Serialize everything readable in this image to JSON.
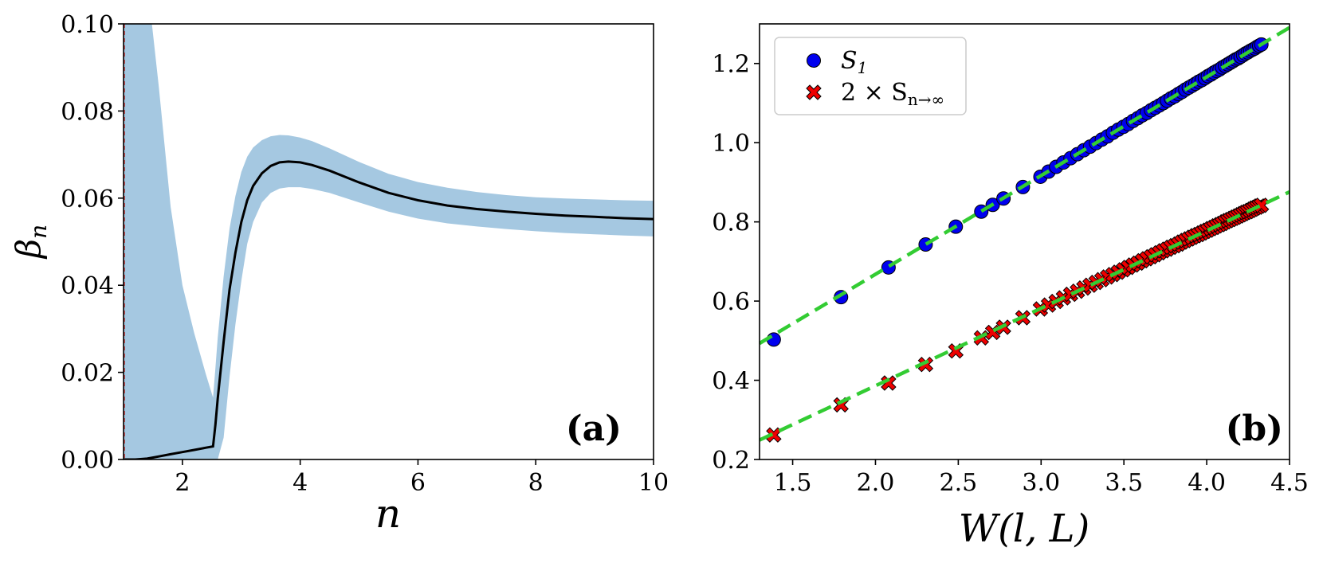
{
  "chart_data": [
    {
      "id": "a",
      "type": "line",
      "panel_label": "(a)",
      "xlabel": "n",
      "ylabel": "β",
      "ylabel_sub": "n",
      "xlim": [
        1,
        10
      ],
      "ylim": [
        0,
        0.1
      ],
      "xticks": [
        2,
        4,
        6,
        8,
        10
      ],
      "xtick_labels": [
        "2",
        "4",
        "6",
        "8",
        "10"
      ],
      "yticks": [
        0,
        0.02,
        0.04,
        0.06,
        0.08,
        0.1
      ],
      "ytick_labels": [
        "0.00",
        "0.02",
        "0.04",
        "0.06",
        "0.08",
        "0.10"
      ],
      "vline_x": 1.0,
      "series": [
        {
          "name": "beta_n",
          "color": "#000000",
          "x": [
            1.0,
            1.2,
            1.4,
            1.6,
            1.8,
            2.0,
            2.2,
            2.4,
            2.52,
            2.56,
            2.6,
            2.7,
            2.8,
            2.9,
            3.0,
            3.1,
            3.2,
            3.35,
            3.5,
            3.65,
            3.8,
            4.0,
            4.2,
            4.5,
            5.0,
            5.5,
            6.0,
            6.5,
            7.0,
            7.5,
            8.0,
            8.5,
            9.0,
            9.5,
            10.0
          ],
          "y": [
            0.0,
            0.0,
            0.0002,
            0.0007,
            0.0012,
            0.0017,
            0.0022,
            0.0027,
            0.003,
            0.008,
            0.014,
            0.027,
            0.039,
            0.0475,
            0.0545,
            0.0595,
            0.0628,
            0.0657,
            0.0674,
            0.0682,
            0.0684,
            0.0682,
            0.0676,
            0.0663,
            0.0636,
            0.0612,
            0.0595,
            0.0583,
            0.0575,
            0.0569,
            0.0564,
            0.056,
            0.0557,
            0.0554,
            0.0552
          ]
        }
      ],
      "band": {
        "name": "uncertainty",
        "color": "#a5c8e1",
        "x": [
          1.0,
          1.2,
          1.4,
          1.6,
          1.8,
          2.0,
          2.2,
          2.4,
          2.52,
          2.56,
          2.6,
          2.7,
          2.8,
          2.9,
          3.0,
          3.1,
          3.2,
          3.35,
          3.5,
          3.65,
          3.8,
          4.0,
          4.2,
          4.5,
          5.0,
          5.5,
          6.0,
          6.5,
          7.0,
          7.5,
          8.0,
          8.5,
          9.0,
          9.5,
          10.0
        ],
        "upper": [
          0.11,
          0.11,
          0.11,
          0.0855,
          0.058,
          0.04,
          0.029,
          0.0195,
          0.0142,
          0.021,
          0.028,
          0.042,
          0.053,
          0.0605,
          0.066,
          0.0695,
          0.0716,
          0.0733,
          0.0742,
          0.0745,
          0.0744,
          0.0739,
          0.0731,
          0.0714,
          0.0683,
          0.0656,
          0.0637,
          0.0624,
          0.0614,
          0.0607,
          0.0602,
          0.0599,
          0.0597,
          0.0595,
          0.0594
        ],
        "lower": [
          0.0,
          0.0,
          0.0,
          0.0,
          0.0,
          0.0,
          0.0,
          0.0,
          0.0,
          0.0,
          0.0,
          0.005,
          0.019,
          0.031,
          0.041,
          0.0495,
          0.0545,
          0.059,
          0.0612,
          0.0622,
          0.0625,
          0.0625,
          0.0621,
          0.0612,
          0.059,
          0.0569,
          0.0553,
          0.0542,
          0.0535,
          0.0529,
          0.0524,
          0.052,
          0.0517,
          0.0514,
          0.0512
        ]
      }
    },
    {
      "id": "b",
      "type": "scatter",
      "panel_label": "(b)",
      "xlabel": "W(l, L)",
      "ylabel": "",
      "xlim": [
        1.3,
        4.5
      ],
      "ylim": [
        0.2,
        1.3
      ],
      "xticks": [
        1.5,
        2.0,
        2.5,
        3.0,
        3.5,
        4.0,
        4.5
      ],
      "xtick_labels": [
        "1.5",
        "2.0",
        "2.5",
        "3.0",
        "3.5",
        "4.0",
        "4.5"
      ],
      "yticks": [
        0.2,
        0.4,
        0.6,
        0.8,
        1.0,
        1.2
      ],
      "ytick_labels": [
        "0.2",
        "0.4",
        "0.6",
        "0.8",
        "1.0",
        "1.2"
      ],
      "legend": {
        "location": "top-left",
        "entries": [
          {
            "label": "S",
            "sub": "1",
            "marker": "circle",
            "color": "#0000ee"
          },
          {
            "label": "2 × S",
            "sub": "n→∞",
            "marker": "x",
            "color": "#ee0000"
          }
        ]
      },
      "series": [
        {
          "name": "S_1",
          "marker": "circle",
          "color": "#0000ee",
          "fit": {
            "slope": 0.2492,
            "intercept": 0.1693,
            "color": "#33cc33"
          },
          "x": [
            1.386,
            1.792,
            2.079,
            2.303,
            2.485,
            2.639,
            2.708,
            2.773,
            2.89,
            2.996,
            3.045,
            3.091,
            3.135,
            3.178,
            3.219,
            3.258,
            3.296,
            3.332,
            3.367,
            3.401,
            3.434,
            3.466,
            3.497,
            3.526,
            3.555,
            3.584,
            3.611,
            3.638,
            3.664,
            3.689,
            3.714,
            3.738,
            3.761,
            3.784,
            3.807,
            3.829,
            3.85,
            3.871,
            3.892,
            3.912,
            3.932,
            3.951,
            3.97,
            3.989,
            4.007,
            4.025,
            4.043,
            4.06,
            4.078,
            4.094,
            4.111,
            4.127,
            4.143,
            4.159,
            4.174,
            4.19,
            4.205,
            4.22,
            4.234,
            4.248,
            4.263,
            4.277,
            4.29,
            4.304,
            4.317,
            4.33
          ],
          "y": [
            0.503,
            0.61,
            0.685,
            0.743,
            0.788,
            0.826,
            0.843,
            0.859,
            0.888,
            0.914,
            0.927,
            0.939,
            0.95,
            0.961,
            0.971,
            0.981,
            0.99,
            0.999,
            1.008,
            1.016,
            1.025,
            1.033,
            1.04,
            1.047,
            1.055,
            1.062,
            1.069,
            1.075,
            1.082,
            1.088,
            1.094,
            1.1,
            1.106,
            1.112,
            1.117,
            1.123,
            1.128,
            1.134,
            1.139,
            1.144,
            1.149,
            1.154,
            1.158,
            1.163,
            1.168,
            1.172,
            1.177,
            1.181,
            1.185,
            1.19,
            1.194,
            1.198,
            1.202,
            1.206,
            1.21,
            1.213,
            1.217,
            1.221,
            1.225,
            1.228,
            1.232,
            1.235,
            1.238,
            1.242,
            1.245,
            1.248
          ]
        },
        {
          "name": "2 x S_n->inf",
          "marker": "x",
          "color": "#ee0000",
          "fit": {
            "slope": 0.1958,
            "intercept": -0.0055,
            "color": "#33cc33"
          },
          "x": [
            1.386,
            1.792,
            2.079,
            2.303,
            2.485,
            2.639,
            2.708,
            2.773,
            2.89,
            2.996,
            3.045,
            3.091,
            3.135,
            3.178,
            3.219,
            3.258,
            3.296,
            3.332,
            3.367,
            3.401,
            3.434,
            3.466,
            3.497,
            3.526,
            3.555,
            3.584,
            3.611,
            3.638,
            3.664,
            3.689,
            3.714,
            3.738,
            3.761,
            3.784,
            3.807,
            3.829,
            3.85,
            3.871,
            3.892,
            3.912,
            3.932,
            3.951,
            3.97,
            3.989,
            4.007,
            4.025,
            4.043,
            4.06,
            4.078,
            4.094,
            4.111,
            4.127,
            4.143,
            4.159,
            4.174,
            4.19,
            4.205,
            4.22,
            4.234,
            4.248,
            4.263,
            4.277,
            4.29,
            4.304,
            4.317,
            4.33
          ],
          "y": [
            0.262,
            0.338,
            0.393,
            0.44,
            0.474,
            0.507,
            0.521,
            0.534,
            0.558,
            0.58,
            0.59,
            0.599,
            0.608,
            0.617,
            0.625,
            0.633,
            0.64,
            0.647,
            0.654,
            0.661,
            0.667,
            0.673,
            0.679,
            0.685,
            0.691,
            0.696,
            0.702,
            0.707,
            0.712,
            0.717,
            0.722,
            0.727,
            0.731,
            0.736,
            0.74,
            0.744,
            0.749,
            0.753,
            0.757,
            0.761,
            0.765,
            0.768,
            0.772,
            0.776,
            0.779,
            0.783,
            0.786,
            0.79,
            0.793,
            0.796,
            0.8,
            0.803,
            0.806,
            0.809,
            0.812,
            0.815,
            0.818,
            0.821,
            0.824,
            0.826,
            0.829,
            0.832,
            0.835,
            0.837,
            0.84,
            0.842
          ]
        }
      ]
    }
  ]
}
